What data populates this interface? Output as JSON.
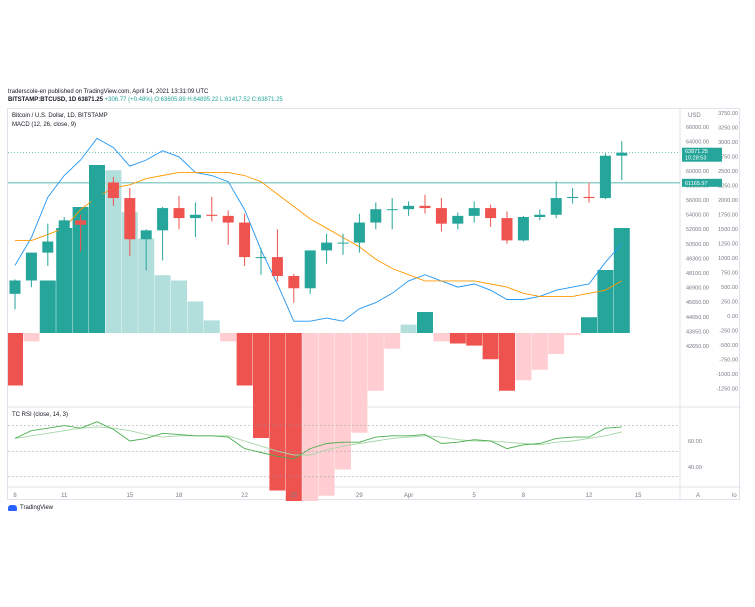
{
  "header": {
    "publisher": "traderscole-en published on TradingView.com, April 14, 2021 13:31:09 UTC",
    "symbol": "BITSTAMP:BTCUSD, 1D",
    "last": "63871.25",
    "change": "+306.77 (+0.48%)",
    "ohlc": "O:63605.89 H:64895.22 L:61417.52 C:63871.25"
  },
  "panes": {
    "main_title": "Bitcoin / U.S. Dollar, 1D, BITSTAMP",
    "macd_title": "MACD (12, 26, close, 9)",
    "rsi_title": "TC RSI (close, 14, 3)",
    "currency": "USD"
  },
  "price_tags": {
    "last": "63871.25",
    "countdown": "10:28:53",
    "level": "61165.97"
  },
  "axes": {
    "price_ticks": [
      "66000.00",
      "64000.00",
      "62000.00",
      "60000.00",
      "58000.00",
      "56000.00",
      "54000.00",
      "52000.00",
      "50500.00",
      "49300.00",
      "48100.00",
      "46900.00",
      "45650.00",
      "44650.00",
      "43650.00",
      "42650.00"
    ],
    "macd_ticks": [
      "3750.00",
      "3250.00",
      "3000.00",
      "2750.00",
      "2500.00",
      "2250.00",
      "2000.00",
      "1750.00",
      "1500.00",
      "1250.00",
      "1000.00",
      "750.00",
      "500.00",
      "250.00",
      "0.00",
      "-250.00",
      "-500.00",
      "-750.00",
      "-1000.00",
      "-1250.00"
    ],
    "rsi_ticks": [
      "60.00",
      "40.00"
    ],
    "date_ticks": [
      "8",
      "11",
      "15",
      "18",
      "22",
      "25",
      "29",
      "Apr",
      "5",
      "8",
      "12",
      "15"
    ],
    "corner_a": "A",
    "corner_log": "lo"
  },
  "footer": {
    "brand": "TradingView"
  },
  "colors": {
    "up": "#26a69a",
    "down": "#ef5350",
    "macd": "#2196f3",
    "signal": "#ff9800",
    "rsi": "#4caf50",
    "rsi_sig": "#a5d6a7"
  },
  "chart_data": {
    "type": "candlestick",
    "x": [
      "Mar 8",
      "Mar 9",
      "Mar 10",
      "Mar 11",
      "Mar 12",
      "Mar 13",
      "Mar 14",
      "Mar 15",
      "Mar 16",
      "Mar 17",
      "Mar 18",
      "Mar 19",
      "Mar 20",
      "Mar 21",
      "Mar 22",
      "Mar 23",
      "Mar 24",
      "Mar 25",
      "Mar 26",
      "Mar 27",
      "Mar 28",
      "Mar 29",
      "Mar 30",
      "Mar 31",
      "Apr 1",
      "Apr 2",
      "Apr 3",
      "Apr 4",
      "Apr 5",
      "Apr 6",
      "Apr 7",
      "Apr 8",
      "Apr 9",
      "Apr 10",
      "Apr 11",
      "Apr 12",
      "Apr 13",
      "Apr 14"
    ],
    "candles": [
      {
        "o": 51200,
        "h": 52500,
        "l": 49800,
        "c": 52400
      },
      {
        "o": 52400,
        "h": 54900,
        "l": 51800,
        "c": 54900
      },
      {
        "o": 54900,
        "h": 57500,
        "l": 53700,
        "c": 55900
      },
      {
        "o": 55900,
        "h": 58100,
        "l": 54200,
        "c": 57800
      },
      {
        "o": 57800,
        "h": 58300,
        "l": 55000,
        "c": 57400
      },
      {
        "o": 57400,
        "h": 61800,
        "l": 56300,
        "c": 61200
      },
      {
        "o": 61200,
        "h": 61700,
        "l": 59100,
        "c": 59800
      },
      {
        "o": 59800,
        "h": 60700,
        "l": 54600,
        "c": 56100
      },
      {
        "o": 56100,
        "h": 57000,
        "l": 53300,
        "c": 56900
      },
      {
        "o": 56900,
        "h": 59000,
        "l": 54200,
        "c": 58900
      },
      {
        "o": 58900,
        "h": 60000,
        "l": 57000,
        "c": 58000
      },
      {
        "o": 58000,
        "h": 59400,
        "l": 56300,
        "c": 58300
      },
      {
        "o": 58300,
        "h": 59900,
        "l": 57700,
        "c": 58200
      },
      {
        "o": 58200,
        "h": 58700,
        "l": 55600,
        "c": 57600
      },
      {
        "o": 57600,
        "h": 58400,
        "l": 53700,
        "c": 54500
      },
      {
        "o": 54500,
        "h": 55300,
        "l": 52900,
        "c": 54500
      },
      {
        "o": 54500,
        "h": 57000,
        "l": 52300,
        "c": 52800
      },
      {
        "o": 52800,
        "h": 53000,
        "l": 50400,
        "c": 51700
      },
      {
        "o": 51700,
        "h": 55100,
        "l": 51200,
        "c": 55100
      },
      {
        "o": 55100,
        "h": 56600,
        "l": 53900,
        "c": 55800
      },
      {
        "o": 55800,
        "h": 56600,
        "l": 54700,
        "c": 55800
      },
      {
        "o": 55800,
        "h": 58400,
        "l": 54900,
        "c": 57600
      },
      {
        "o": 57600,
        "h": 59400,
        "l": 57000,
        "c": 58800
      },
      {
        "o": 58800,
        "h": 59800,
        "l": 57000,
        "c": 58800
      },
      {
        "o": 58800,
        "h": 59500,
        "l": 58200,
        "c": 59100
      },
      {
        "o": 59100,
        "h": 60100,
        "l": 58400,
        "c": 58900
      },
      {
        "o": 58900,
        "h": 59800,
        "l": 56800,
        "c": 57500
      },
      {
        "o": 57500,
        "h": 58500,
        "l": 57000,
        "c": 58200
      },
      {
        "o": 58200,
        "h": 59500,
        "l": 57600,
        "c": 58900
      },
      {
        "o": 58900,
        "h": 59200,
        "l": 57200,
        "c": 58000
      },
      {
        "o": 58000,
        "h": 58600,
        "l": 55700,
        "c": 56000
      },
      {
        "o": 56000,
        "h": 58200,
        "l": 55900,
        "c": 58100
      },
      {
        "o": 58100,
        "h": 58800,
        "l": 57800,
        "c": 58300
      },
      {
        "o": 58300,
        "h": 61300,
        "l": 58000,
        "c": 59800
      },
      {
        "o": 59800,
        "h": 60700,
        "l": 59300,
        "c": 59900
      },
      {
        "o": 59900,
        "h": 61200,
        "l": 59400,
        "c": 59800
      },
      {
        "o": 59800,
        "h": 63800,
        "l": 59700,
        "c": 63600
      },
      {
        "o": 63605.89,
        "h": 64895.22,
        "l": 61417.52,
        "c": 63871.25
      }
    ],
    "macd_hist": [
      -500,
      -80,
      500,
      1000,
      1200,
      1600,
      1550,
      1150,
      900,
      550,
      500,
      300,
      120,
      -80,
      -500,
      -1000,
      -1500,
      -1950,
      -1650,
      -1550,
      -1300,
      -950,
      -550,
      -150,
      80,
      200,
      -80,
      -100,
      -120,
      -250,
      -550,
      -450,
      -350,
      -200,
      -20,
      150,
      600,
      1000
    ],
    "macd": [
      1800,
      2250,
      2900,
      3250,
      3500,
      3850,
      3700,
      3400,
      3500,
      3650,
      3550,
      3300,
      3250,
      3150,
      2700,
      2050,
      1500,
      900,
      900,
      950,
      900,
      1100,
      1200,
      1350,
      1550,
      1650,
      1550,
      1450,
      1500,
      1400,
      1250,
      1250,
      1300,
      1400,
      1450,
      1500,
      1850,
      2150
    ],
    "signal": [
      2200,
      2200,
      2300,
      2400,
      2700,
      2900,
      3050,
      3100,
      3200,
      3250,
      3300,
      3300,
      3300,
      3300,
      3250,
      3150,
      2950,
      2750,
      2550,
      2400,
      2250,
      2100,
      1900,
      1750,
      1650,
      1550,
      1550,
      1550,
      1550,
      1500,
      1450,
      1350,
      1300,
      1300,
      1300,
      1350,
      1400,
      1550
    ],
    "rsi": [
      60,
      66,
      68,
      70,
      68,
      73,
      67,
      58,
      60,
      64,
      63,
      62,
      62,
      61,
      52,
      49,
      46,
      44,
      52,
      56,
      57,
      57,
      61,
      62,
      62,
      63,
      56,
      57,
      59,
      58,
      52,
      55,
      56,
      60,
      61,
      61,
      68,
      69
    ],
    "rsi_signal": [
      60,
      62,
      64,
      66,
      68,
      69,
      68,
      66,
      63,
      61,
      62,
      62,
      62,
      62,
      58,
      54,
      50,
      47,
      47,
      51,
      54,
      56,
      58,
      60,
      61,
      62,
      61,
      59,
      58,
      58,
      57,
      56,
      55,
      57,
      58,
      60,
      62,
      65
    ],
    "price_axis_range": [
      42650,
      66000
    ],
    "rsi_levels": [
      70,
      50,
      30
    ]
  }
}
